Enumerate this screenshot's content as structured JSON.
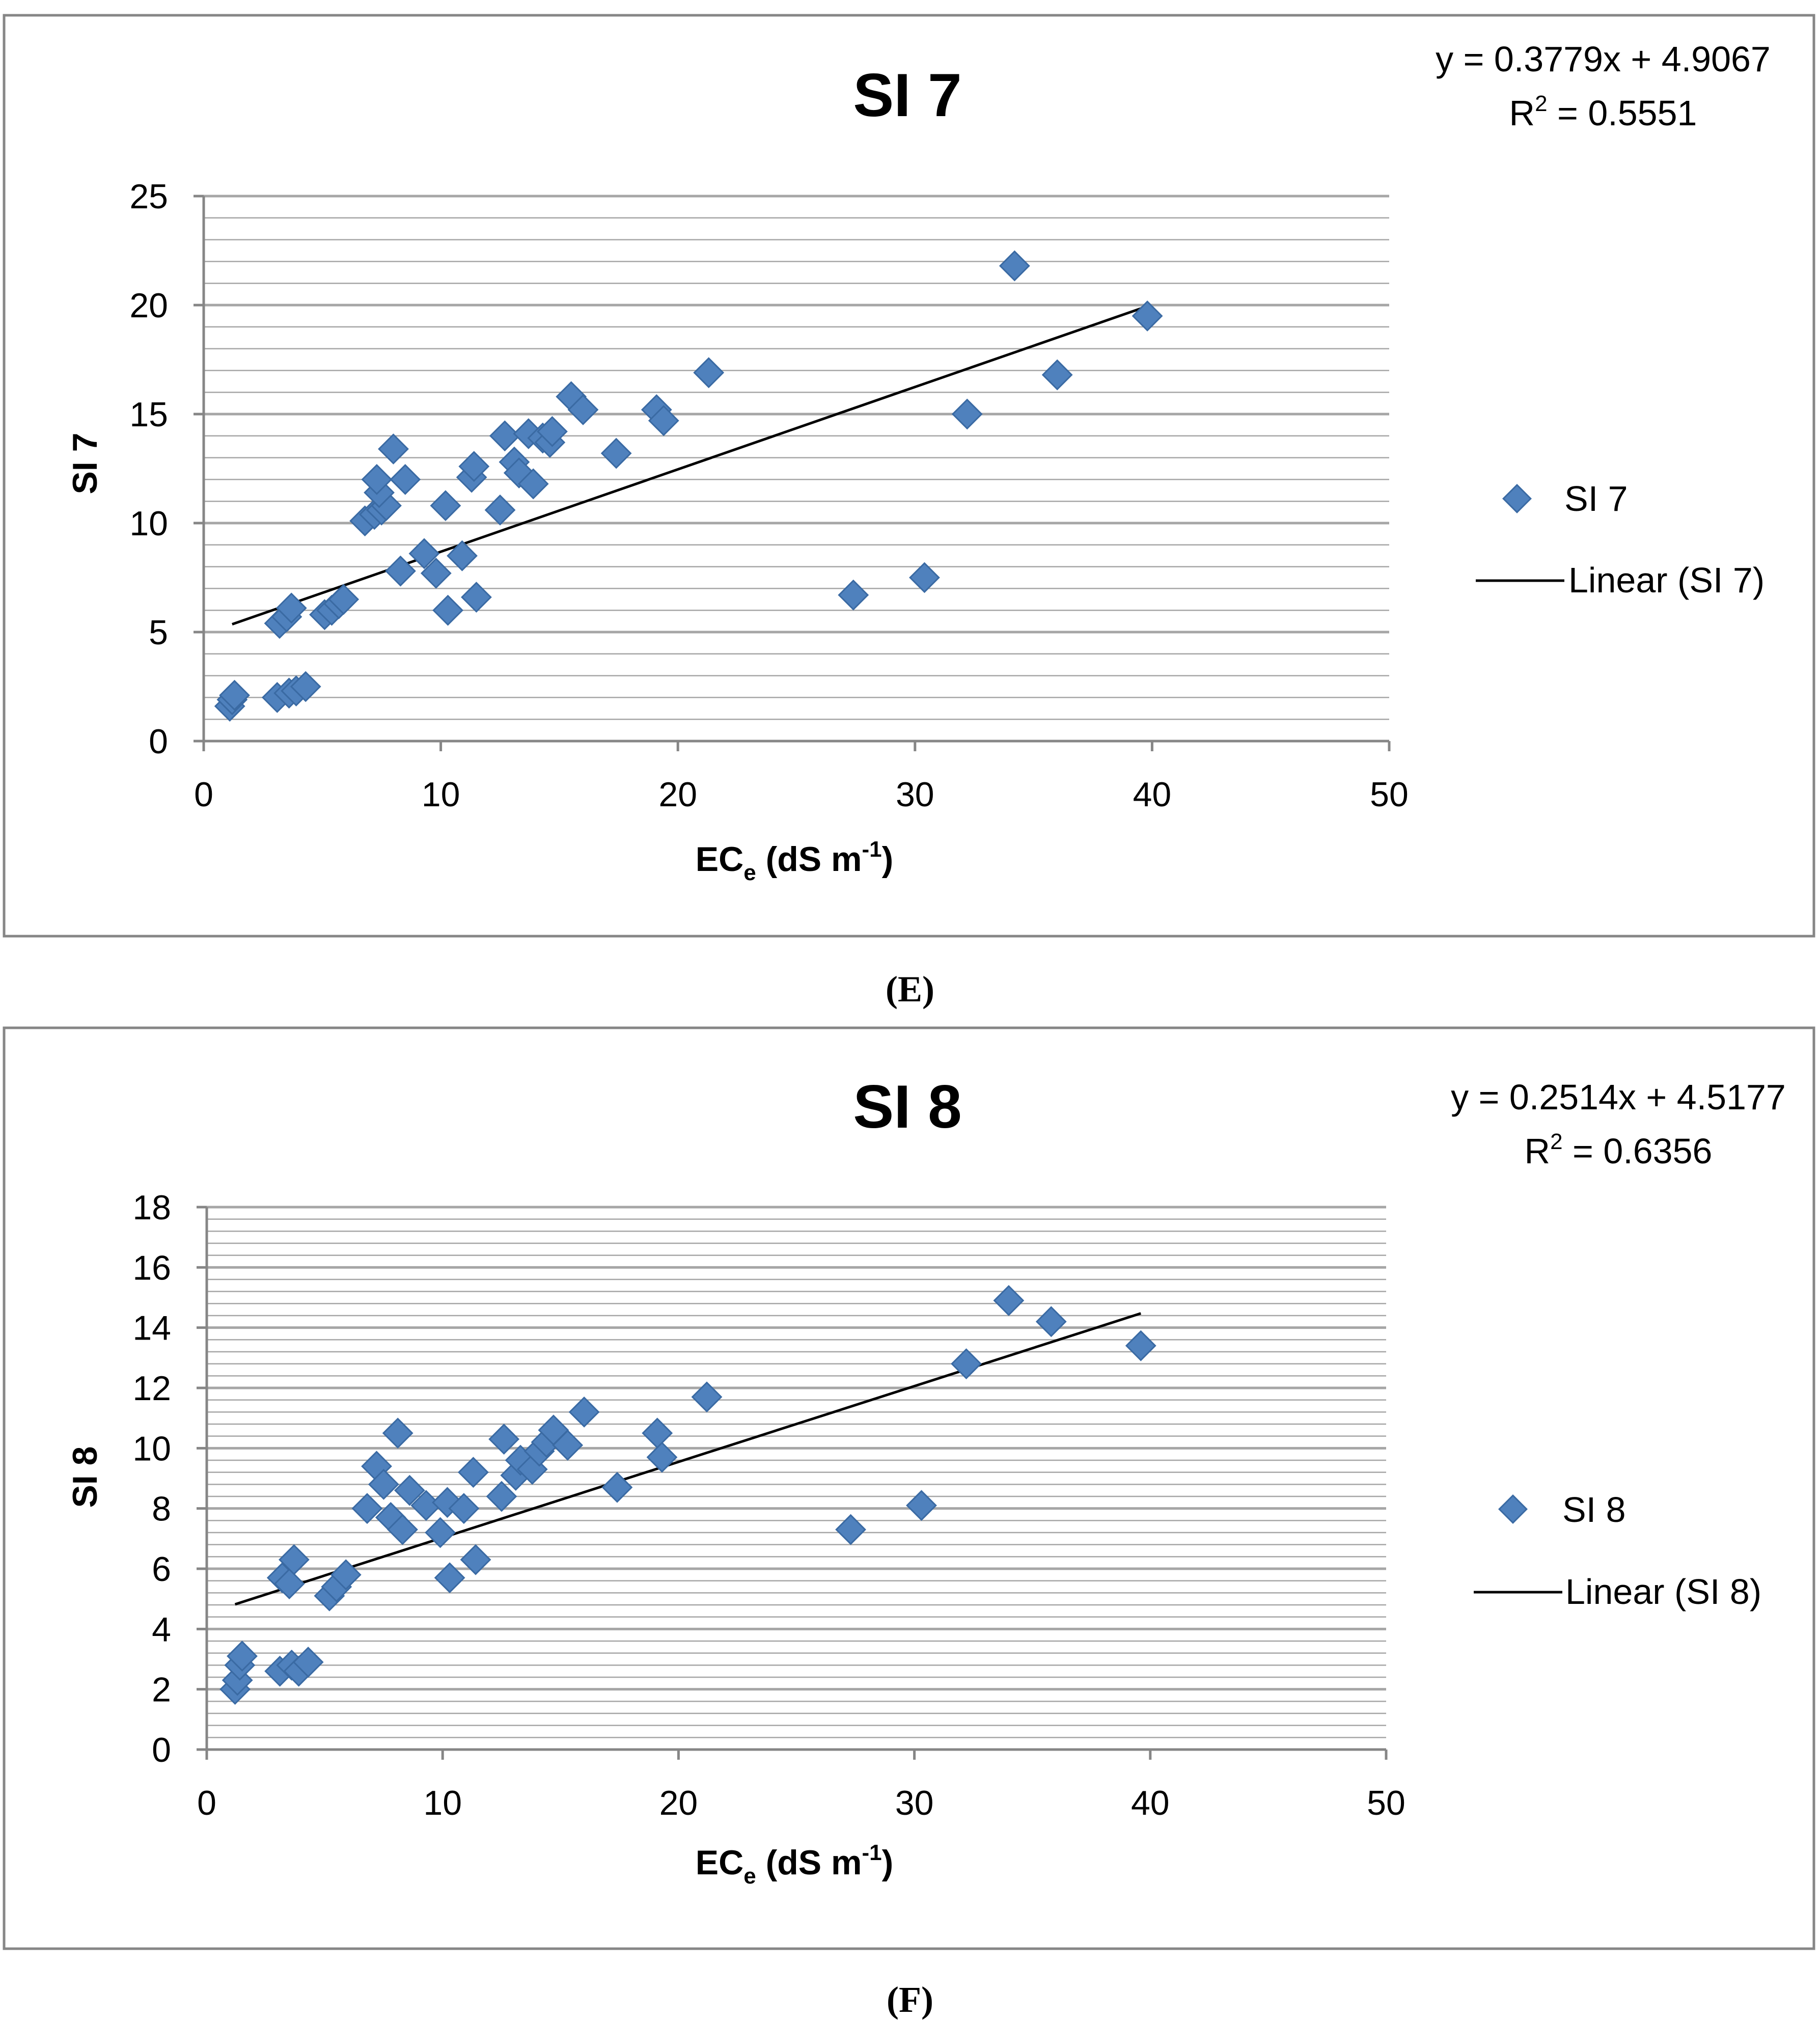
{
  "figure": {
    "caption_E": "(E)",
    "caption_F": "(F)"
  },
  "colors": {
    "marker": "#4F81BD",
    "marker_edge": "#3A6AA3",
    "trendline": "#000000",
    "gridline": "#A6A6A6",
    "frame": "#868686",
    "axis": "#868686"
  },
  "chart_data": [
    {
      "type": "scatter",
      "title": "SI 7",
      "xlabel_main": "EC",
      "xlabel_sub": "e",
      "xlabel_mid": " (dS m",
      "xlabel_sup": "-1",
      "xlabel_end": ")",
      "ylabel": "SI 7",
      "xlim": [
        0,
        50
      ],
      "ylim": [
        0,
        25
      ],
      "xticks": [
        "0",
        "10",
        "20",
        "30",
        "40",
        "50"
      ],
      "yticks": [
        "0",
        "5",
        "10",
        "15",
        "20",
        "25"
      ],
      "major_step": 5,
      "minor_step": 1,
      "equation": "y = 0.3779x + 4.9067",
      "r2_prefix": "R",
      "r2_sup": "2",
      "r2_value": " = 0.5551",
      "legend": {
        "series_label": "SI 7",
        "trend_label": "Linear (SI 7)",
        "position": "right"
      },
      "trend": {
        "slope": 0.3779,
        "intercept": 4.9067,
        "x_range": [
          1.2,
          39.6
        ]
      },
      "series": [
        {
          "name": "SI 7",
          "points": [
            [
              1.1,
              1.6
            ],
            [
              1.2,
              1.9
            ],
            [
              1.3,
              2.1
            ],
            [
              3.1,
              2.0
            ],
            [
              3.6,
              2.2
            ],
            [
              3.9,
              2.3
            ],
            [
              4.3,
              2.5
            ],
            [
              3.2,
              5.4
            ],
            [
              3.5,
              5.7
            ],
            [
              3.7,
              6.1
            ],
            [
              5.1,
              5.8
            ],
            [
              5.4,
              6.0
            ],
            [
              5.7,
              6.3
            ],
            [
              5.9,
              6.5
            ],
            [
              6.8,
              10.1
            ],
            [
              7.2,
              10.4
            ],
            [
              7.5,
              10.6
            ],
            [
              7.7,
              10.8
            ],
            [
              7.4,
              11.4
            ],
            [
              7.3,
              12.0
            ],
            [
              8.0,
              13.4
            ],
            [
              8.5,
              12.0
            ],
            [
              8.3,
              7.8
            ],
            [
              9.3,
              8.6
            ],
            [
              9.8,
              7.7
            ],
            [
              10.3,
              6.0
            ],
            [
              10.2,
              10.8
            ],
            [
              10.9,
              8.5
            ],
            [
              11.5,
              6.6
            ],
            [
              11.3,
              12.1
            ],
            [
              11.4,
              12.6
            ],
            [
              12.5,
              10.6
            ],
            [
              12.7,
              14.0
            ],
            [
              13.1,
              12.8
            ],
            [
              13.3,
              12.3
            ],
            [
              13.9,
              11.8
            ],
            [
              13.7,
              14.1
            ],
            [
              14.3,
              13.9
            ],
            [
              14.6,
              13.7
            ],
            [
              14.7,
              14.2
            ],
            [
              15.5,
              15.8
            ],
            [
              16.0,
              15.2
            ],
            [
              17.4,
              13.2
            ],
            [
              19.1,
              15.2
            ],
            [
              19.4,
              14.7
            ],
            [
              21.3,
              16.9
            ],
            [
              27.4,
              6.7
            ],
            [
              30.4,
              7.5
            ],
            [
              32.2,
              15.0
            ],
            [
              34.2,
              21.8
            ],
            [
              36.0,
              16.8
            ],
            [
              39.8,
              19.5
            ]
          ]
        }
      ]
    },
    {
      "type": "scatter",
      "title": "SI 8",
      "xlabel_main": "EC",
      "xlabel_sub": "e",
      "xlabel_mid": " (dS m",
      "xlabel_sup": "-1",
      "xlabel_end": ")",
      "ylabel": "SI 8",
      "xlim": [
        0,
        50
      ],
      "ylim": [
        0,
        18
      ],
      "xticks": [
        "0",
        "10",
        "20",
        "30",
        "40",
        "50"
      ],
      "yticks": [
        "0",
        "2",
        "4",
        "6",
        "8",
        "10",
        "12",
        "14",
        "16",
        "18"
      ],
      "major_step": 2,
      "minor_step": 0.4,
      "equation": "y = 0.2514x + 4.5177",
      "r2_prefix": "R",
      "r2_sup": "2",
      "r2_value": " = 0.6356",
      "legend": {
        "series_label": "SI 8",
        "trend_label": "Linear (SI 8)",
        "position": "right"
      },
      "trend": {
        "slope": 0.2514,
        "intercept": 4.5177,
        "x_range": [
          1.2,
          39.6
        ]
      },
      "series": [
        {
          "name": "SI 8",
          "points": [
            [
              1.2,
              2.0
            ],
            [
              1.3,
              2.3
            ],
            [
              1.4,
              2.8
            ],
            [
              1.5,
              3.1
            ],
            [
              3.1,
              2.6
            ],
            [
              3.6,
              2.8
            ],
            [
              3.9,
              2.6
            ],
            [
              4.3,
              2.9
            ],
            [
              3.2,
              5.7
            ],
            [
              3.5,
              5.5
            ],
            [
              3.7,
              6.3
            ],
            [
              5.2,
              5.1
            ],
            [
              5.5,
              5.4
            ],
            [
              5.9,
              5.8
            ],
            [
              6.8,
              8.0
            ],
            [
              7.2,
              9.4
            ],
            [
              7.5,
              8.8
            ],
            [
              7.8,
              7.7
            ],
            [
              8.1,
              10.5
            ],
            [
              8.3,
              7.3
            ],
            [
              8.6,
              8.6
            ],
            [
              9.3,
              8.1
            ],
            [
              9.9,
              7.2
            ],
            [
              10.3,
              5.7
            ],
            [
              10.2,
              8.2
            ],
            [
              10.9,
              8.0
            ],
            [
              11.4,
              6.3
            ],
            [
              11.3,
              9.2
            ],
            [
              12.5,
              8.4
            ],
            [
              12.6,
              10.3
            ],
            [
              13.1,
              9.1
            ],
            [
              13.3,
              9.6
            ],
            [
              13.8,
              9.3
            ],
            [
              14.1,
              9.9
            ],
            [
              14.4,
              10.2
            ],
            [
              14.7,
              10.6
            ],
            [
              15.3,
              10.1
            ],
            [
              16.0,
              11.2
            ],
            [
              17.4,
              8.7
            ],
            [
              19.1,
              10.5
            ],
            [
              19.3,
              9.7
            ],
            [
              21.2,
              11.7
            ],
            [
              27.3,
              7.3
            ],
            [
              30.3,
              8.1
            ],
            [
              32.2,
              12.8
            ],
            [
              34.0,
              14.9
            ],
            [
              35.8,
              14.2
            ],
            [
              39.6,
              13.4
            ]
          ]
        }
      ]
    }
  ]
}
